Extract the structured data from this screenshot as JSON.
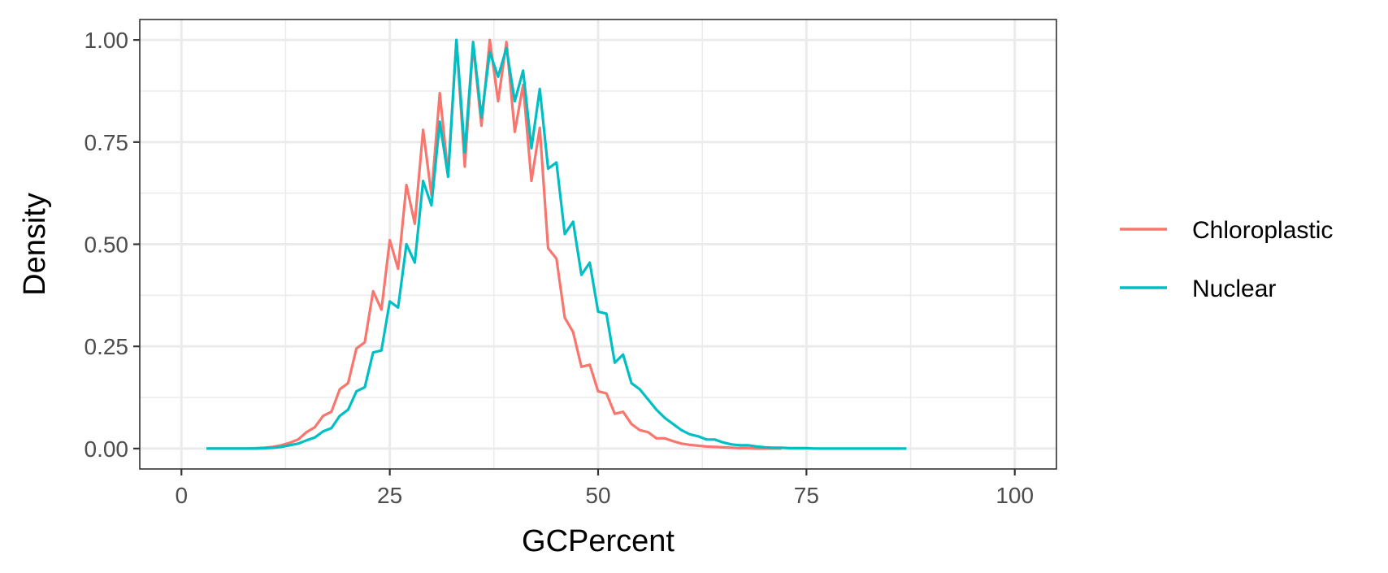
{
  "chart_data": {
    "type": "line",
    "xlabel": "GCPercent",
    "ylabel": "Density",
    "xlim": [
      -5,
      105
    ],
    "ylim": [
      -0.05,
      1.05
    ],
    "x_ticks": [
      0,
      25,
      50,
      75,
      100
    ],
    "x_tick_labels": [
      "0",
      "25",
      "50",
      "75",
      "100"
    ],
    "x_minor_ticks": [
      12.5,
      37.5,
      62.5,
      87.5
    ],
    "y_ticks": [
      0,
      0.25,
      0.5,
      0.75,
      1.0
    ],
    "y_tick_labels": [
      "0.00",
      "0.25",
      "0.50",
      "0.75",
      "1.00"
    ],
    "y_minor_ticks": [
      0.125,
      0.375,
      0.625,
      0.875
    ],
    "grid": true,
    "legend_position": "right",
    "series": [
      {
        "name": "Chloroplastic",
        "color": "#F8766D",
        "x": [
          3,
          4,
          5,
          6,
          7,
          8,
          9,
          10,
          11,
          12,
          13,
          14,
          15,
          16,
          17,
          18,
          19,
          20,
          21,
          22,
          23,
          24,
          25,
          26,
          27,
          28,
          29,
          30,
          31,
          32,
          33,
          34,
          35,
          36,
          37,
          38,
          39,
          40,
          41,
          42,
          43,
          44,
          45,
          46,
          47,
          48,
          49,
          50,
          51,
          52,
          53,
          54,
          55,
          56,
          57,
          58,
          59,
          60,
          61,
          62,
          63,
          64,
          65,
          66,
          67,
          68,
          69,
          70,
          71,
          72
        ],
        "y": [
          0,
          0,
          0,
          0,
          0,
          0,
          0.001,
          0.002,
          0.004,
          0.008,
          0.014,
          0.022,
          0.04,
          0.052,
          0.08,
          0.09,
          0.145,
          0.16,
          0.245,
          0.26,
          0.385,
          0.34,
          0.51,
          0.44,
          0.645,
          0.55,
          0.78,
          0.62,
          0.87,
          0.67,
          1.0,
          0.69,
          0.99,
          0.79,
          1.0,
          0.85,
          0.995,
          0.775,
          0.89,
          0.655,
          0.785,
          0.49,
          0.465,
          0.32,
          0.285,
          0.2,
          0.205,
          0.14,
          0.135,
          0.085,
          0.09,
          0.06,
          0.045,
          0.04,
          0.025,
          0.025,
          0.018,
          0.012,
          0.009,
          0.007,
          0.005,
          0.004,
          0.003,
          0.002,
          0.001,
          0.001,
          0,
          0,
          0,
          0
        ]
      },
      {
        "name": "Nuclear",
        "color": "#00BFC4",
        "x": [
          3,
          4,
          5,
          6,
          7,
          8,
          9,
          10,
          11,
          12,
          13,
          14,
          15,
          16,
          17,
          18,
          19,
          20,
          21,
          22,
          23,
          24,
          25,
          26,
          27,
          28,
          29,
          30,
          31,
          32,
          33,
          34,
          35,
          36,
          37,
          38,
          39,
          40,
          41,
          42,
          43,
          44,
          45,
          46,
          47,
          48,
          49,
          50,
          51,
          52,
          53,
          54,
          55,
          56,
          57,
          58,
          59,
          60,
          61,
          62,
          63,
          64,
          65,
          66,
          67,
          68,
          69,
          70,
          71,
          72,
          73,
          74,
          75,
          76,
          77,
          78,
          79,
          80,
          81,
          82,
          83,
          84,
          85,
          86,
          87
        ],
        "y": [
          0,
          0,
          0,
          0,
          0,
          0,
          0,
          0.001,
          0.002,
          0.004,
          0.008,
          0.012,
          0.02,
          0.027,
          0.042,
          0.05,
          0.08,
          0.095,
          0.14,
          0.15,
          0.235,
          0.24,
          0.36,
          0.345,
          0.5,
          0.455,
          0.655,
          0.595,
          0.8,
          0.665,
          1.0,
          0.725,
          0.995,
          0.81,
          0.97,
          0.91,
          0.98,
          0.85,
          0.925,
          0.735,
          0.88,
          0.685,
          0.7,
          0.525,
          0.555,
          0.425,
          0.455,
          0.335,
          0.33,
          0.21,
          0.23,
          0.16,
          0.145,
          0.12,
          0.095,
          0.075,
          0.06,
          0.045,
          0.035,
          0.03,
          0.022,
          0.022,
          0.015,
          0.01,
          0.008,
          0.008,
          0.005,
          0.003,
          0.002,
          0.002,
          0.001,
          0.001,
          0.001,
          0,
          0,
          0,
          0,
          0,
          0,
          0,
          0,
          0,
          0,
          0,
          0
        ]
      }
    ]
  }
}
